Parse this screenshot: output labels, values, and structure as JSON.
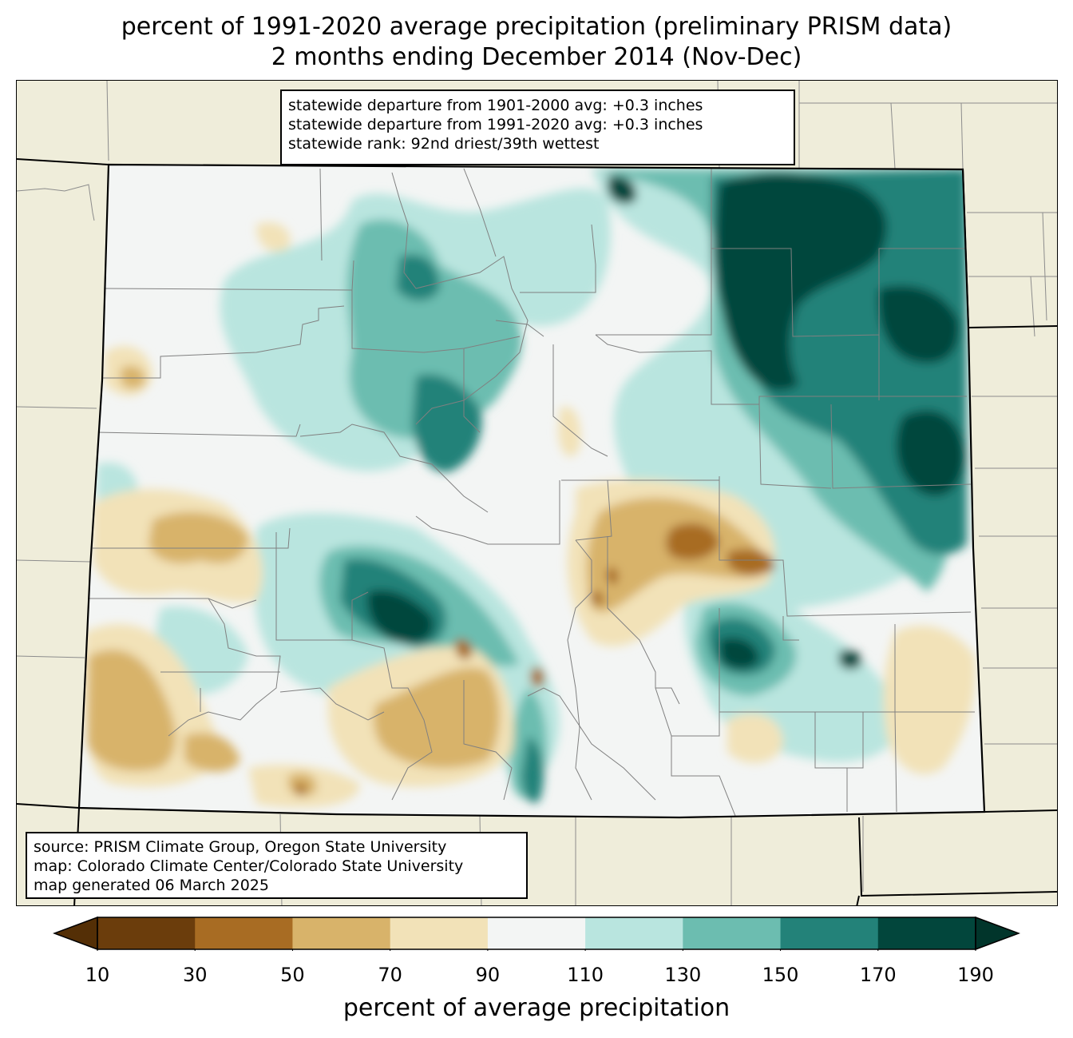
{
  "title": {
    "line1": "percent of 1991-2020 average precipitation (preliminary PRISM data)",
    "line2": "2 months ending December 2014 (Nov-Dec)"
  },
  "stats_box": {
    "line1": "statewide departure from 1901-2000 avg: +0.3 inches",
    "line2": "statewide departure from 1991-2020 avg: +0.3 inches",
    "line3": "statewide rank: 92nd driest/39th wettest"
  },
  "source_box": {
    "line1": "source: PRISM Climate Group, Oregon State University",
    "line2": "map: Colorado Climate Center/Colorado State University",
    "line3": "map generated 06 March 2025"
  },
  "colors": {
    "background_land": "#efedda",
    "bins": [
      "#6b3d0c",
      "#a86c23",
      "#d8b36a",
      "#f2e2b8",
      "#f3f5f4",
      "#b9e5df",
      "#6cbdb0",
      "#238279",
      "#02463c"
    ],
    "under": "#542f06",
    "over": "#01352b"
  },
  "colorbar": {
    "ticks": [
      "10",
      "30",
      "50",
      "70",
      "90",
      "110",
      "130",
      "150",
      "170",
      "190"
    ],
    "label": "percent of average precipitation"
  },
  "chart_data": {
    "type": "heatmap",
    "title": "percent of 1991-2020 average precipitation (preliminary PRISM data)",
    "subtitle": "2 months ending December 2014 (Nov-Dec)",
    "region": "Colorado",
    "units": "percent of average precipitation",
    "levels": [
      10,
      30,
      50,
      70,
      90,
      110,
      130,
      150,
      170,
      190
    ],
    "extend": "both",
    "statewide_departure_1901_2000_inches": 0.3,
    "statewide_departure_1991_2020_inches": 0.3
  }
}
